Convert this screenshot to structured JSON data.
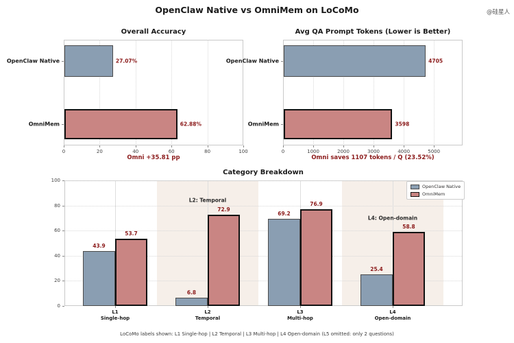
{
  "main_title": "OpenClaw Native vs OmniMem on LoCoMo",
  "watermark": "@硅星人",
  "footer": "LoCoMo labels shown: L1 Single-hop | L2 Temporal | L3 Multi-hop | L4 Open-domain (L5 omitted: only 2 questions)",
  "colors": {
    "openclaw_fill": "#8A9EB2",
    "openclaw_edge": "#4a4a4a",
    "omnimem_fill": "#C98583",
    "omnimem_edge": "#111111",
    "value_label": "#8B1A1A",
    "highlight_band": "#F6EFE9"
  },
  "chart_data": [
    {
      "type": "bar",
      "orientation": "horizontal",
      "title": "Overall Accuracy",
      "categories": [
        "OpenClaw Native",
        "OmniMem"
      ],
      "values": [
        27.07,
        62.88
      ],
      "value_labels": [
        "27.07%",
        "62.88%"
      ],
      "xlim": [
        0,
        100
      ],
      "xticks": [
        0,
        20,
        40,
        60,
        80,
        100
      ],
      "xlabel": "Omni +35.81 pp",
      "grid": true,
      "legend": false
    },
    {
      "type": "bar",
      "orientation": "horizontal",
      "title": "Avg QA Prompt Tokens (Lower is Better)",
      "categories": [
        "OpenClaw Native",
        "OmniMem"
      ],
      "values": [
        4705,
        3598
      ],
      "value_labels": [
        "4705",
        "3598"
      ],
      "xlim": [
        0,
        5950
      ],
      "xticks": [
        0,
        1000,
        2000,
        3000,
        4000,
        5000
      ],
      "xlabel": "Omni saves 1107 tokens / Q (23.52%)",
      "grid": true,
      "legend": false
    },
    {
      "type": "bar",
      "orientation": "vertical",
      "title": "Category Breakdown",
      "categories": [
        {
          "line1": "L1",
          "line2": "Single-hop"
        },
        {
          "line1": "L2",
          "line2": "Temporal"
        },
        {
          "line1": "L3",
          "line2": "Multi-hop"
        },
        {
          "line1": "L4",
          "line2": "Open-domain"
        }
      ],
      "series": [
        {
          "name": "OpenClaw Native",
          "values": [
            43.9,
            6.8,
            69.2,
            25.4
          ]
        },
        {
          "name": "OmniMem",
          "values": [
            53.7,
            72.9,
            76.9,
            58.8
          ]
        }
      ],
      "ylim": [
        0,
        100
      ],
      "yticks": [
        0,
        20,
        40,
        60,
        80,
        100
      ],
      "grid": true,
      "highlight_band_categories": [
        1,
        3
      ],
      "annotations": [
        {
          "text": "L2: Temporal",
          "category_index": 1,
          "y": 84
        },
        {
          "text": "L4: Open-domain",
          "category_index": 3,
          "y": 70
        }
      ],
      "legend": [
        "OpenClaw Native",
        "OmniMem"
      ],
      "legend_position": "upper right"
    }
  ]
}
